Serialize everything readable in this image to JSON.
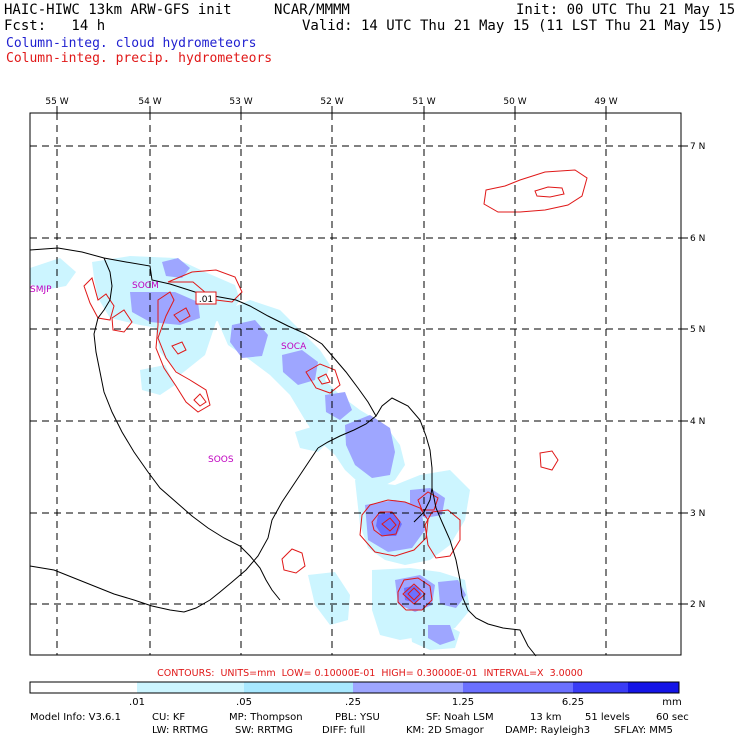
{
  "header": {
    "model": "HAIC-HIWC 13km ARW-GFS init",
    "org": "NCAR/MMMM",
    "init": "Init: 00 UTC Thu 21 May 15",
    "fcst": "Fcst:   14 h",
    "valid": "Valid: 14 UTC Thu 21 May 15 (11 LST Thu 21 May 15)"
  },
  "fields": {
    "cloud": "Column-integ. cloud hydrometeors",
    "precip": "Column-integ. precip. hydrometeors"
  },
  "lon_labels": [
    "55 W",
    "54 W",
    "53 W",
    "52 W",
    "51 W",
    "50 W",
    "49 W"
  ],
  "lat_labels": [
    "7 N",
    "6 N",
    "5 N",
    "4 N",
    "3 N",
    "2 N"
  ],
  "stations": [
    "SMJP",
    "SOCM",
    "SOCA",
    "SOOS"
  ],
  "contour_value_label": ".01",
  "contours": "CONTOURS:  UNITS=mm  LOW= 0.10000E-01  HIGH= 0.30000E-01  INTERVAL=X  3.0000",
  "colorbar": {
    "labels": [
      ".01",
      ".05",
      ".25",
      "1.25",
      "6.25",
      "mm"
    ],
    "colors": [
      "#ffffff",
      "#ccf5ff",
      "#a8e8ff",
      "#9ea6ff",
      "#6b70ff",
      "#3a3cf5",
      "#1414e6"
    ]
  },
  "footer": {
    "line1": [
      "Model Info: V3.6.1",
      "CU: KF",
      "MP: Thompson",
      "PBL: YSU",
      "SF: Noah LSM",
      "13 km",
      "51 levels",
      "60 sec"
    ],
    "line2": [
      "LW: RRTMG",
      "SW: RRTMG",
      "DIFF: full",
      "KM: 2D Smagor",
      "DAMP: Rayleigh3",
      "SFLAY: MM5"
    ]
  },
  "colors": {
    "cloud_text": "#1f1fd0",
    "precip_text": "#e01818",
    "grid": "#000000",
    "coast": "#000000"
  }
}
